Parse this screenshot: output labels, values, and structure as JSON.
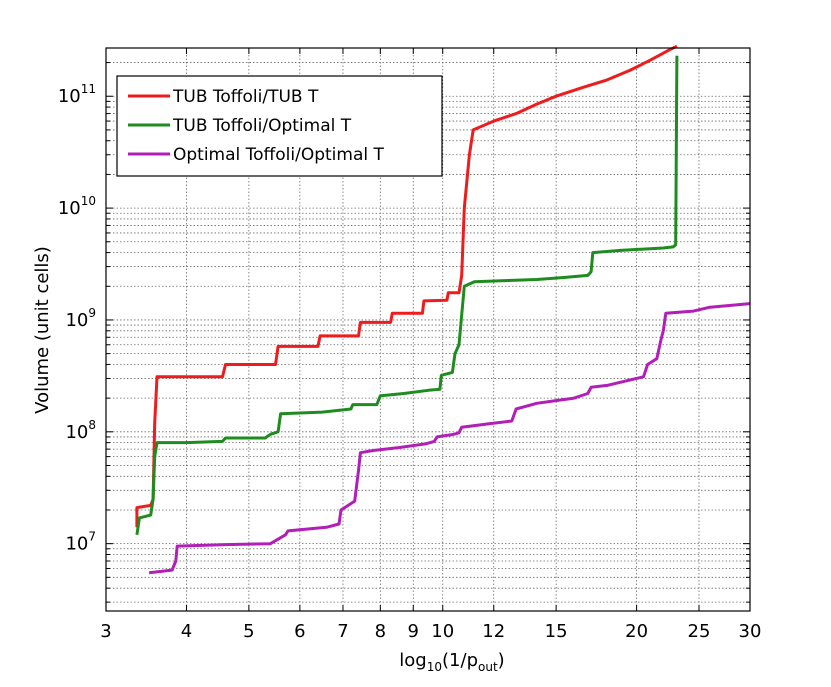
{
  "chart_data": {
    "type": "line",
    "title": "",
    "xlabel": {
      "main": "log",
      "sub": "10",
      "rest": "(1/p",
      "sub2": "out",
      "end": ")"
    },
    "ylabel": "Volume (unit cells)",
    "x_scale": "log",
    "y_scale": "log",
    "xlim": [
      3,
      30
    ],
    "ylim": [
      2500000,
      270000000000
    ],
    "grid": true,
    "legend_position": "top-left",
    "x_ticks": [
      {
        "value": 3,
        "label": "3"
      },
      {
        "value": 4,
        "label": "4"
      },
      {
        "value": 5,
        "label": "5"
      },
      {
        "value": 6,
        "label": "6"
      },
      {
        "value": 7,
        "label": "7"
      },
      {
        "value": 8,
        "label": "8"
      },
      {
        "value": 9,
        "label": "9"
      },
      {
        "value": 10,
        "label": "10"
      },
      {
        "value": 12,
        "label": "12"
      },
      {
        "value": 15,
        "label": "15"
      },
      {
        "value": 20,
        "label": "20"
      },
      {
        "value": 25,
        "label": "25"
      },
      {
        "value": 30,
        "label": "30"
      }
    ],
    "y_ticks": [
      {
        "value": 10000000,
        "base": "10",
        "exp": "7"
      },
      {
        "value": 100000000,
        "base": "10",
        "exp": "8"
      },
      {
        "value": 1000000000,
        "base": "10",
        "exp": "9"
      },
      {
        "value": 10000000000,
        "base": "10",
        "exp": "10"
      },
      {
        "value": 100000000000,
        "base": "10",
        "exp": "11"
      }
    ],
    "series": [
      {
        "name": "TUB Toffoli/TUB T",
        "color": "#ee1c1c",
        "points": [
          [
            3.35,
            14000000
          ],
          [
            3.35,
            21000000
          ],
          [
            3.52,
            22000000
          ],
          [
            3.55,
            25000000
          ],
          [
            3.57,
            120000000
          ],
          [
            3.6,
            310000000
          ],
          [
            4.55,
            310000000
          ],
          [
            4.6,
            400000000
          ],
          [
            5.5,
            400000000
          ],
          [
            5.55,
            580000000
          ],
          [
            6.4,
            580000000
          ],
          [
            6.45,
            720000000
          ],
          [
            7.4,
            720000000
          ],
          [
            7.45,
            950000000
          ],
          [
            8.3,
            950000000
          ],
          [
            8.35,
            1150000000
          ],
          [
            9.3,
            1150000000
          ],
          [
            9.35,
            1480000000
          ],
          [
            10.15,
            1500000000
          ],
          [
            10.2,
            1750000000
          ],
          [
            10.6,
            1750000000
          ],
          [
            10.7,
            2500000000
          ],
          [
            10.8,
            10000000000
          ],
          [
            11.0,
            30000000000
          ],
          [
            11.15,
            50000000000
          ],
          [
            12.0,
            60000000000
          ],
          [
            13.0,
            70000000000
          ],
          [
            14.0,
            85000000000
          ],
          [
            15.0,
            100000000000
          ],
          [
            16.5,
            120000000000
          ],
          [
            18.0,
            140000000000
          ],
          [
            19.5,
            170000000000
          ],
          [
            21.0,
            210000000000
          ],
          [
            22.5,
            260000000000
          ],
          [
            23.1,
            280000000000
          ]
        ]
      },
      {
        "name": "TUB Toffoli/Optimal T",
        "color": "#1e8c1e",
        "points": [
          [
            3.35,
            12000000
          ],
          [
            3.38,
            17000000
          ],
          [
            3.52,
            18000000
          ],
          [
            3.55,
            25000000
          ],
          [
            3.57,
            60000000
          ],
          [
            3.6,
            80000000
          ],
          [
            4.0,
            80000000
          ],
          [
            4.55,
            82000000
          ],
          [
            4.6,
            88000000
          ],
          [
            5.3,
            88000000
          ],
          [
            5.4,
            95000000
          ],
          [
            5.55,
            100000000
          ],
          [
            5.6,
            145000000
          ],
          [
            6.5,
            150000000
          ],
          [
            7.2,
            160000000
          ],
          [
            7.25,
            175000000
          ],
          [
            7.9,
            175000000
          ],
          [
            8.0,
            210000000
          ],
          [
            8.7,
            220000000
          ],
          [
            9.5,
            235000000
          ],
          [
            9.9,
            240000000
          ],
          [
            9.95,
            320000000
          ],
          [
            10.35,
            340000000
          ],
          [
            10.45,
            500000000
          ],
          [
            10.6,
            600000000
          ],
          [
            10.8,
            2000000000
          ],
          [
            11.2,
            2200000000
          ],
          [
            12.5,
            2250000000
          ],
          [
            14.0,
            2300000000
          ],
          [
            15.5,
            2400000000
          ],
          [
            16.8,
            2500000000
          ],
          [
            17.0,
            2700000000
          ],
          [
            17.1,
            4000000000
          ],
          [
            19.0,
            4200000000
          ],
          [
            20.5,
            4300000000
          ],
          [
            22.0,
            4400000000
          ],
          [
            22.8,
            4500000000
          ],
          [
            23.0,
            4700000000
          ],
          [
            23.1,
            230000000000
          ]
        ]
      },
      {
        "name": "Optimal Toffoli/Optimal T",
        "color": "#b21eb8",
        "points": [
          [
            3.5,
            5500000
          ],
          [
            3.8,
            5800000
          ],
          [
            3.85,
            7000000
          ],
          [
            3.87,
            9500000
          ],
          [
            4.6,
            9800000
          ],
          [
            5.4,
            10000000
          ],
          [
            5.7,
            12000000
          ],
          [
            5.75,
            13000000
          ],
          [
            6.6,
            14000000
          ],
          [
            6.9,
            15000000
          ],
          [
            6.95,
            20000000
          ],
          [
            7.3,
            24000000
          ],
          [
            7.4,
            45000000
          ],
          [
            7.45,
            65000000
          ],
          [
            7.8,
            68000000
          ],
          [
            8.5,
            72000000
          ],
          [
            9.4,
            78000000
          ],
          [
            9.7,
            82000000
          ],
          [
            9.8,
            90000000
          ],
          [
            10.4,
            95000000
          ],
          [
            10.6,
            98000000
          ],
          [
            10.7,
            110000000
          ],
          [
            11.8,
            118000000
          ],
          [
            12.8,
            125000000
          ],
          [
            13.0,
            160000000
          ],
          [
            14.0,
            180000000
          ],
          [
            15.0,
            190000000
          ],
          [
            16.0,
            200000000
          ],
          [
            16.8,
            220000000
          ],
          [
            17.0,
            250000000
          ],
          [
            18.0,
            260000000
          ],
          [
            19.0,
            280000000
          ],
          [
            20.0,
            300000000
          ],
          [
            20.5,
            310000000
          ],
          [
            20.8,
            400000000
          ],
          [
            21.5,
            450000000
          ],
          [
            21.8,
            650000000
          ],
          [
            22.0,
            800000000
          ],
          [
            22.2,
            1150000000
          ],
          [
            24.5,
            1200000000
          ],
          [
            26.0,
            1300000000
          ],
          [
            28.0,
            1350000000
          ],
          [
            30.0,
            1400000000
          ]
        ]
      }
    ]
  }
}
